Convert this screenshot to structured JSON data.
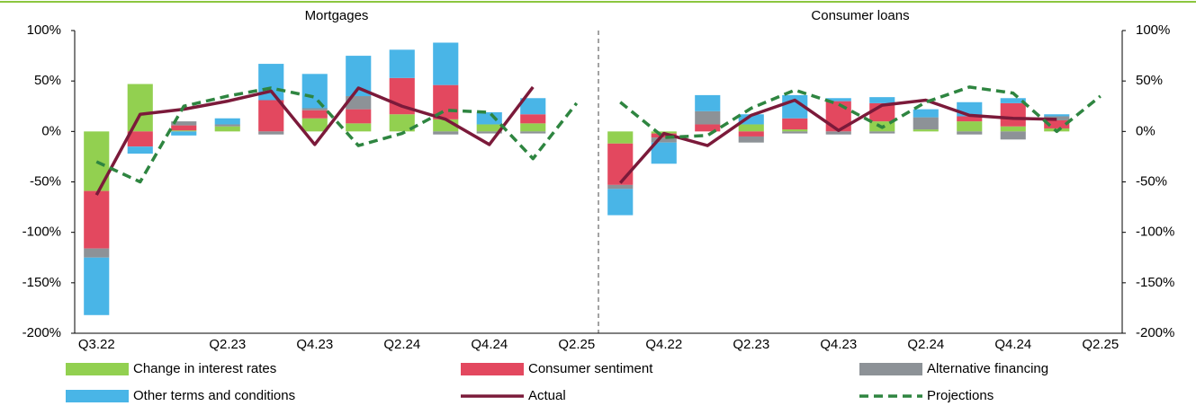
{
  "chart_data": [
    {
      "type": "bar",
      "title": "Mortgages",
      "categories": [
        "Q3.22",
        null,
        null,
        "Q2.23",
        null,
        "Q4.23",
        null,
        "Q2.24",
        null,
        "Q4.24",
        null,
        "Q2.25"
      ],
      "ylim": [
        -200,
        100
      ],
      "yticks": [
        {
          "value": 100,
          "label": "100%"
        },
        {
          "value": 50,
          "label": "50%"
        },
        {
          "value": 0,
          "label": "0%"
        },
        {
          "value": -50,
          "label": "-50%"
        },
        {
          "value": -100,
          "label": "-100%"
        },
        {
          "value": -150,
          "label": "-150%"
        },
        {
          "value": -200,
          "label": "-200%"
        }
      ],
      "series": [
        {
          "name": "Change in interest rates",
          "type": "bar",
          "color": "#92d050",
          "values": [
            -59,
            47,
            1,
            5,
            0,
            13,
            8,
            17,
            12,
            7,
            8,
            null
          ]
        },
        {
          "name": "Consumer sentiment",
          "type": "bar",
          "color": "#e3485f",
          "values": [
            -57,
            -15,
            5,
            0,
            31,
            8,
            14,
            36,
            34,
            0,
            9,
            null
          ]
        },
        {
          "name": "Alternative financing",
          "type": "bar",
          "color": "#8d9297",
          "values": [
            -9,
            0,
            4,
            2,
            -3,
            2,
            13,
            0,
            -3,
            -2,
            -2,
            null
          ]
        },
        {
          "name": "Other terms and conditions",
          "type": "bar",
          "color": "#49b5e7",
          "values": [
            -57,
            -7,
            -4,
            6,
            36,
            34,
            40,
            28,
            42,
            12,
            16,
            null
          ]
        },
        {
          "name": "Actual",
          "type": "line",
          "color": "#7b1a3a",
          "values": [
            -63,
            17,
            22,
            30,
            40,
            -13,
            43,
            25,
            12,
            -13,
            44,
            null
          ]
        },
        {
          "name": "Projections",
          "type": "line",
          "dash": true,
          "color": "#2e8540",
          "values": [
            -30,
            -50,
            25,
            35,
            43,
            34,
            -14,
            -2,
            21,
            19,
            -27,
            28
          ]
        }
      ]
    },
    {
      "type": "bar",
      "title": "Consumer loans",
      "categories": [
        null,
        "Q4.22",
        null,
        "Q2.23",
        null,
        "Q4.23",
        null,
        "Q2.24",
        null,
        "Q4.24",
        null,
        "Q2.25"
      ],
      "ylim": [
        -200,
        100
      ],
      "yticks": [
        {
          "value": 100,
          "label": "100%"
        },
        {
          "value": 50,
          "label": "50%"
        },
        {
          "value": 0,
          "label": "0%"
        },
        {
          "value": -50,
          "label": "-50%"
        },
        {
          "value": -100,
          "label": "-100%"
        },
        {
          "value": -150,
          "label": "-150%"
        },
        {
          "value": -200,
          "label": "-200%"
        }
      ],
      "series": [
        {
          "name": "Change in interest rates",
          "type": "bar",
          "color": "#92d050",
          "values": [
            -12,
            -2,
            0,
            7,
            2,
            0,
            10,
            2,
            10,
            5,
            3,
            null
          ]
        },
        {
          "name": "Consumer sentiment",
          "type": "bar",
          "color": "#e3485f",
          "values": [
            -41,
            -4,
            7,
            -5,
            11,
            30,
            18,
            0,
            5,
            23,
            8,
            null
          ]
        },
        {
          "name": "Alternative financing",
          "type": "bar",
          "color": "#8d9297",
          "values": [
            -4,
            -5,
            13,
            -6,
            -2,
            -3,
            -2,
            12,
            -3,
            -8,
            4,
            null
          ]
        },
        {
          "name": "Other terms and conditions",
          "type": "bar",
          "color": "#49b5e7",
          "values": [
            -26,
            -21,
            16,
            10,
            23,
            3,
            6,
            8,
            14,
            5,
            2,
            null
          ]
        },
        {
          "name": "Actual",
          "type": "line",
          "color": "#7b1a3a",
          "values": [
            -51,
            -2,
            -14,
            16,
            31,
            1,
            26,
            31,
            16,
            13,
            12,
            null
          ]
        },
        {
          "name": "Projections",
          "type": "line",
          "dash": true,
          "color": "#2e8540",
          "values": [
            29,
            -6,
            -4,
            23,
            41,
            27,
            4,
            29,
            44,
            38,
            0,
            35
          ]
        }
      ]
    }
  ]
}
